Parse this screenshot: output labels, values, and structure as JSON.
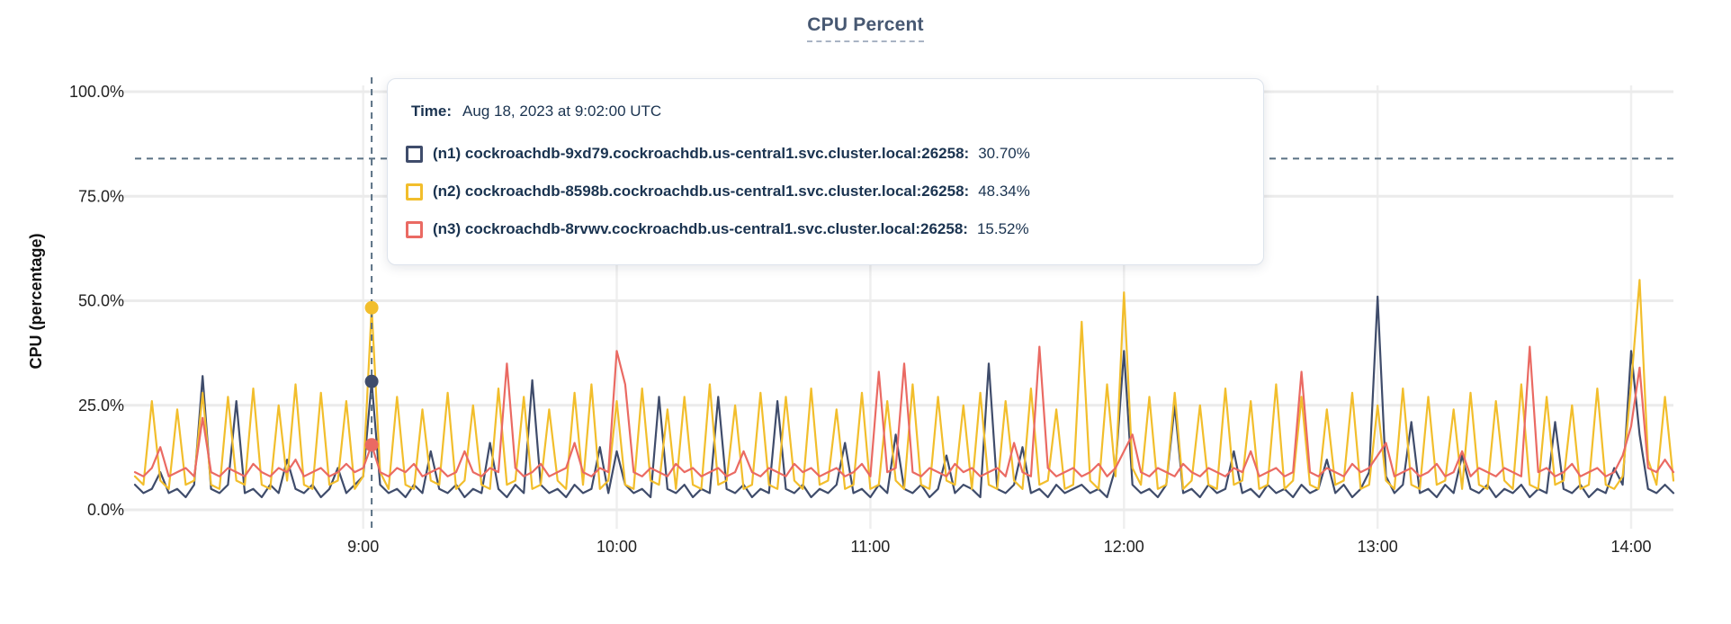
{
  "title": {
    "text": "CPU Percent",
    "color": "#475872"
  },
  "y_axis": {
    "label": "CPU (percentage)",
    "ticks": [
      {
        "label": "100.0%",
        "value": 100
      },
      {
        "label": "75.0%",
        "value": 75
      },
      {
        "label": "50.0%",
        "value": 50
      },
      {
        "label": "25.0%",
        "value": 25
      },
      {
        "label": "0.0%",
        "value": 0
      }
    ]
  },
  "x_axis": {
    "ticks": [
      {
        "label": "9:00",
        "minute": 540
      },
      {
        "label": "10:00",
        "minute": 600
      },
      {
        "label": "11:00",
        "minute": 660
      },
      {
        "label": "12:00",
        "minute": 720
      },
      {
        "label": "13:00",
        "minute": 780
      },
      {
        "label": "14:00",
        "minute": 840
      }
    ]
  },
  "tooltip": {
    "time_label": "Time:",
    "time_value": "Aug 18, 2023 at 9:02:00 UTC",
    "rows": [
      {
        "label": "(n1) cockroachdb-9xd79.cockroachdb.us-central1.svc.cluster.local:26258:",
        "value": "30.70%",
        "color": "#3f4c6b"
      },
      {
        "label": "(n2) cockroachdb-8598b.cockroachdb.us-central1.svc.cluster.local:26258:",
        "value": "48.34%",
        "color": "#f2be2c"
      },
      {
        "label": "(n3) cockroachdb-8rvwv.cockroachdb.us-central1.svc.cluster.local:26258:",
        "value": "15.52%",
        "color": "#ea6a63"
      }
    ]
  },
  "colors": {
    "grid_horizontal": "#ebebeb",
    "grid_vertical": "#efefef",
    "crosshair": "#5a7184",
    "axis_text": "#212121",
    "tooltip_text": "#1a3350"
  },
  "chart_data": {
    "type": "line",
    "title": "CPU Percent",
    "xlabel": "",
    "ylabel": "CPU (percentage)",
    "ylim": [
      0,
      100
    ],
    "grid": true,
    "legend_position": "tooltip",
    "x_start_minute": 486,
    "x_step_minute": 2,
    "x_end_minute": 850,
    "hover": {
      "minute": 542,
      "crosshair_y_percent": 84,
      "time": "Aug 18, 2023 at 9:02:00 UTC"
    },
    "series": [
      {
        "name": "(n1) cockroachdb-9xd79.cockroachdb.us-central1.svc.cluster.local:26258",
        "color": "#3f4c6b",
        "hover_value": 30.7,
        "values": [
          6,
          4,
          5,
          9,
          4,
          5,
          3,
          6,
          32,
          5,
          4,
          6,
          26,
          4,
          5,
          3,
          6,
          4,
          12,
          5,
          4,
          6,
          3,
          5,
          10,
          4,
          6,
          8,
          30.7,
          6,
          4,
          5,
          3,
          6,
          4,
          14,
          5,
          4,
          6,
          3,
          5,
          4,
          16,
          5,
          3,
          6,
          4,
          31,
          6,
          4,
          5,
          3,
          6,
          4,
          5,
          15,
          4,
          14,
          6,
          4,
          5,
          3,
          27,
          5,
          4,
          6,
          3,
          5,
          4,
          27,
          5,
          4,
          6,
          3,
          5,
          4,
          26,
          5,
          4,
          6,
          3,
          5,
          4,
          6,
          16,
          4,
          5,
          3,
          6,
          4,
          18,
          5,
          4,
          6,
          3,
          5,
          13,
          4,
          6,
          5,
          3,
          35,
          5,
          4,
          6,
          15,
          4,
          5,
          3,
          6,
          4,
          5,
          6,
          4,
          5,
          3,
          10,
          38,
          6,
          4,
          5,
          3,
          6,
          25,
          4,
          5,
          3,
          6,
          4,
          5,
          14,
          4,
          5,
          3,
          6,
          4,
          5,
          3,
          6,
          4,
          5,
          12,
          4,
          6,
          3,
          5,
          9,
          51,
          8,
          4,
          6,
          21,
          4,
          5,
          3,
          6,
          4,
          13,
          5,
          4,
          6,
          3,
          5,
          4,
          6,
          3,
          5,
          4,
          21,
          5,
          4,
          6,
          3,
          5,
          4,
          10,
          6,
          38,
          18,
          5,
          4,
          6,
          4
        ]
      },
      {
        "name": "(n2) cockroachdb-8598b.cockroachdb.us-central1.svc.cluster.local:26258",
        "color": "#f2be2c",
        "hover_value": 48.34,
        "values": [
          8,
          6,
          26,
          7,
          5,
          24,
          6,
          7,
          28,
          6,
          5,
          27,
          7,
          6,
          29,
          6,
          5,
          25,
          7,
          30,
          6,
          5,
          28,
          6,
          7,
          26,
          5,
          8,
          48.34,
          9,
          5,
          27,
          6,
          5,
          24,
          7,
          6,
          28,
          5,
          7,
          25,
          6,
          5,
          29,
          6,
          7,
          27,
          5,
          6,
          24,
          7,
          5,
          28,
          6,
          30,
          5,
          7,
          26,
          6,
          5,
          29,
          7,
          6,
          24,
          5,
          27,
          6,
          5,
          30,
          6,
          7,
          25,
          5,
          6,
          28,
          6,
          5,
          27,
          7,
          5,
          29,
          6,
          7,
          24,
          5,
          6,
          28,
          5,
          6,
          26,
          7,
          5,
          30,
          6,
          5,
          27,
          7,
          6,
          25,
          5,
          28,
          6,
          5,
          26,
          7,
          5,
          29,
          6,
          7,
          24,
          5,
          6,
          45,
          7,
          5,
          30,
          8,
          52,
          10,
          6,
          27,
          5,
          6,
          28,
          5,
          7,
          25,
          6,
          5,
          29,
          6,
          7,
          26,
          5,
          6,
          30,
          5,
          7,
          27,
          6,
          5,
          24,
          6,
          7,
          28,
          5,
          6,
          25,
          7,
          5,
          29,
          6,
          5,
          27,
          6,
          7,
          24,
          5,
          28,
          6,
          5,
          26,
          7,
          5,
          30,
          6,
          5,
          27,
          6,
          7,
          25,
          5,
          6,
          29,
          6,
          5,
          8,
          30,
          55,
          12,
          6,
          27,
          7
        ]
      },
      {
        "name": "(n3) cockroachdb-8rvwv.cockroachdb.us-central1.svc.cluster.local:26258",
        "color": "#ea6a63",
        "hover_value": 15.52,
        "values": [
          9,
          8,
          10,
          15,
          8,
          9,
          10,
          8,
          22,
          9,
          8,
          10,
          9,
          8,
          11,
          9,
          8,
          10,
          9,
          12,
          8,
          9,
          10,
          8,
          9,
          11,
          9,
          10,
          15.52,
          9,
          8,
          10,
          9,
          11,
          8,
          9,
          10,
          8,
          9,
          14,
          9,
          8,
          10,
          9,
          35,
          10,
          8,
          9,
          11,
          8,
          9,
          10,
          16,
          9,
          8,
          10,
          9,
          38,
          30,
          9,
          8,
          10,
          9,
          8,
          11,
          9,
          10,
          8,
          9,
          10,
          8,
          9,
          14,
          9,
          8,
          10,
          9,
          8,
          11,
          9,
          10,
          8,
          9,
          10,
          8,
          9,
          11,
          8,
          33,
          9,
          10,
          35,
          9,
          8,
          10,
          9,
          8,
          11,
          9,
          10,
          8,
          9,
          10,
          8,
          16,
          9,
          8,
          39,
          10,
          8,
          9,
          10,
          8,
          9,
          11,
          8,
          10,
          14,
          18,
          9,
          8,
          10,
          9,
          8,
          11,
          9,
          8,
          10,
          9,
          8,
          10,
          9,
          14,
          8,
          9,
          10,
          8,
          9,
          33,
          9,
          8,
          10,
          9,
          8,
          11,
          9,
          10,
          13,
          16,
          8,
          9,
          10,
          8,
          9,
          11,
          8,
          9,
          14,
          8,
          10,
          9,
          8,
          10,
          9,
          8,
          39,
          9,
          10,
          8,
          9,
          11,
          8,
          9,
          10,
          8,
          9,
          13,
          20,
          34,
          10,
          9,
          12,
          9
        ]
      }
    ]
  }
}
